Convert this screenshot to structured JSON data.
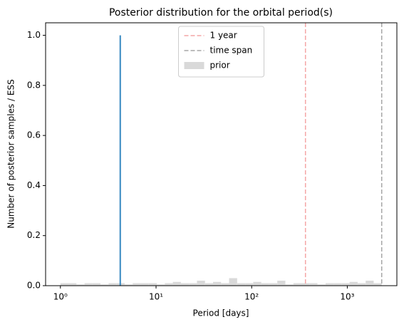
{
  "chart_data": {
    "type": "histogram",
    "title": "Posterior distribution for the orbital period(s)",
    "xlabel": "Period [days]",
    "ylabel": "Number of posterior samples / ESS",
    "xscale": "log",
    "xlim": [
      0.7,
      3300
    ],
    "ylim": [
      0,
      1.05
    ],
    "xticks": [
      {
        "value": 1,
        "label": "10⁰"
      },
      {
        "value": 10,
        "label": "10¹"
      },
      {
        "value": 100,
        "label": "10²"
      },
      {
        "value": 1000,
        "label": "10³"
      }
    ],
    "yticks": [
      {
        "value": 0,
        "label": "0.0"
      },
      0.2,
      0.4,
      0.6,
      0.8,
      {
        "value": 1,
        "label": "1.0"
      }
    ],
    "legend": "upper center",
    "series": [
      {
        "name": "prior",
        "color": "#d9d9d9",
        "bins": [
          1,
          1.213,
          1.472,
          1.786,
          2.167,
          2.63,
          3.191,
          3.872,
          4.699,
          5.702,
          6.918,
          8.395,
          10.19,
          12.36,
          15,
          18.2,
          22.08,
          26.79,
          32.51,
          39.45,
          47.86,
          58.08,
          70.47,
          85.51,
          103.8,
          125.9,
          152.8,
          185.4,
          225,
          273,
          331.1,
          401.8,
          487.5,
          591.6,
          717.8,
          871,
          1057,
          1282,
          1556,
          1888,
          2291
        ],
        "values": [
          0.01,
          0.01,
          0.005,
          0.01,
          0.01,
          0.005,
          0.01,
          0.01,
          0.005,
          0.01,
          0.01,
          0.01,
          0.005,
          0.01,
          0.015,
          0.01,
          0.01,
          0.02,
          0.01,
          0.015,
          0.01,
          0.03,
          0.01,
          0.01,
          0.015,
          0.01,
          0.01,
          0.02,
          0.005,
          0.01,
          0.01,
          0.01,
          0.005,
          0.01,
          0.01,
          0.01,
          0.015,
          0.01,
          0.02,
          0.01
        ]
      },
      {
        "color": "#3b8bc2",
        "bins": [
          4.15,
          4.3
        ],
        "values": [
          1
        ]
      }
    ],
    "vlines": [
      {
        "name": "1 year",
        "value": 365.25,
        "color": "#f4a6a6"
      },
      {
        "name": "time span",
        "value": 2290,
        "color": "#a6a6a6"
      }
    ]
  }
}
